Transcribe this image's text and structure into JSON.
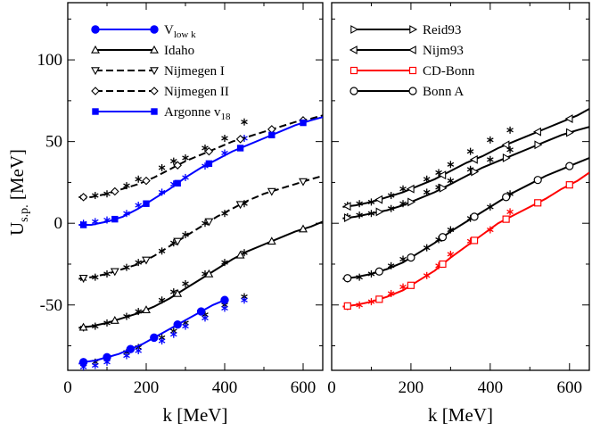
{
  "chart_data": [
    {
      "type": "line",
      "panel": "left",
      "xlabel": "k [MeV]",
      "ylabel": "U",
      "ylabel_sub": "s.p.",
      "ylabel_unit": " [MeV]",
      "xlim": [
        0,
        650
      ],
      "ylim": [
        -90,
        135
      ],
      "xticks": [
        0,
        200,
        400,
        600
      ],
      "xtick_labels": [
        "0",
        "200",
        "400",
        "600"
      ],
      "yticks": [
        -50,
        0,
        50,
        100
      ],
      "ytick_labels": [
        "-50",
        "0",
        "50",
        "100"
      ],
      "legend": [
        "V",
        "Idaho",
        "Nijmegen I",
        "Nijmegen II",
        "Argonne v"
      ],
      "legend_subs": [
        "low k",
        "",
        "",
        "",
        "18"
      ],
      "series": [
        {
          "name": "Vlow k",
          "color": "#0000ff",
          "marker": "filled-circle",
          "dash": "solid",
          "x": [
            28,
            40,
            70,
            100,
            130,
            160,
            190,
            220,
            250,
            280,
            310,
            340,
            370,
            400
          ],
          "y": [
            -86,
            -85,
            -84,
            -82,
            -80,
            -77,
            -74,
            -70,
            -66,
            -62,
            -58,
            -54,
            -50,
            -47
          ],
          "marker_x": [
            40,
            100,
            160,
            220,
            280,
            340,
            400
          ]
        },
        {
          "name": "Idaho",
          "color": "#000000",
          "marker": "open-triangle-up",
          "dash": "solid",
          "x": [
            28,
            60,
            100,
            140,
            180,
            220,
            260,
            300,
            340,
            380,
            420,
            460,
            500,
            540,
            580,
            620,
            650
          ],
          "y": [
            -64,
            -63,
            -61,
            -58,
            -55,
            -51,
            -46,
            -40,
            -34,
            -28,
            -22,
            -17,
            -13,
            -9,
            -5,
            -2,
            1
          ],
          "marker_x": [
            40,
            120,
            200,
            280,
            360,
            440,
            520,
            600
          ]
        },
        {
          "name": "Nijmegen I",
          "color": "#000000",
          "marker": "open-triangle-down",
          "dash": "dashed",
          "x": [
            28,
            60,
            100,
            140,
            180,
            220,
            260,
            300,
            340,
            380,
            420,
            460,
            500,
            540,
            580,
            620,
            650
          ],
          "y": [
            -34,
            -33,
            -31,
            -28,
            -25,
            -20,
            -14,
            -8,
            -2,
            4,
            9,
            14,
            18,
            21,
            24,
            27,
            29
          ],
          "marker_x": [
            40,
            120,
            200,
            280,
            360,
            440,
            520,
            600
          ]
        },
        {
          "name": "Nijmegen II",
          "color": "#000000",
          "marker": "open-diamond",
          "dash": "dashed",
          "x": [
            28,
            60,
            100,
            140,
            180,
            220,
            260,
            300,
            340,
            380,
            420,
            460,
            500,
            540,
            580,
            620,
            650
          ],
          "y": [
            16,
            16,
            18,
            21,
            24,
            28,
            33,
            38,
            42,
            46,
            50,
            53,
            56,
            59,
            62,
            64,
            66
          ],
          "marker_x": [
            40,
            120,
            200,
            280,
            360,
            440,
            520,
            600
          ]
        },
        {
          "name": "Argonne v18",
          "color": "#0000ff",
          "marker": "filled-square",
          "dash": "solid",
          "x": [
            28,
            60,
            100,
            140,
            180,
            220,
            260,
            300,
            340,
            380,
            420,
            460,
            500,
            540,
            580,
            620,
            650
          ],
          "y": [
            -1,
            -1,
            1,
            4,
            9,
            15,
            21,
            28,
            34,
            39,
            44,
            48,
            52,
            56,
            60,
            63,
            65
          ],
          "marker_x": [
            40,
            120,
            200,
            280,
            360,
            440,
            520,
            600
          ]
        }
      ],
      "star_series": [
        {
          "color": "#000000",
          "x": [
            40,
            70,
            100,
            150,
            180,
            240,
            270,
            300,
            350,
            400,
            450
          ],
          "y": [
            -86,
            -85,
            -83,
            -79,
            -76,
            -70,
            -66,
            -61,
            -56,
            -50,
            -45
          ]
        },
        {
          "color": "#0000ff",
          "x": [
            40,
            70,
            100,
            150,
            180,
            240,
            270,
            300,
            350,
            400,
            450
          ],
          "y": [
            -88,
            -87,
            -85,
            -81,
            -78,
            -72,
            -68,
            -63,
            -58,
            -52,
            -47
          ]
        },
        {
          "color": "#000000",
          "x": [
            40,
            70,
            100,
            150,
            180,
            240,
            270,
            300,
            350,
            400,
            450
          ],
          "y": [
            -64,
            -63,
            -61,
            -57,
            -54,
            -47,
            -42,
            -37,
            -31,
            -24,
            -18
          ]
        },
        {
          "color": "#000000",
          "x": [
            40,
            70,
            100,
            150,
            180,
            240,
            270,
            300,
            350,
            400,
            450
          ],
          "y": [
            -34,
            -33,
            -31,
            -27,
            -24,
            -17,
            -12,
            -7,
            0,
            6,
            12
          ]
        },
        {
          "color": "#000000",
          "x": [
            40,
            70,
            100,
            150,
            180,
            240,
            270,
            300,
            350,
            400,
            450
          ],
          "y": [
            16,
            17,
            18,
            23,
            27,
            34,
            38,
            40,
            46,
            52,
            62
          ]
        },
        {
          "color": "#0000ff",
          "x": [
            40,
            70,
            100,
            150,
            180,
            240,
            270,
            300,
            350,
            400,
            450
          ],
          "y": [
            0,
            1,
            2,
            6,
            11,
            19,
            24,
            28,
            35,
            43,
            52
          ]
        }
      ]
    },
    {
      "type": "line",
      "panel": "right",
      "xlabel": "k [MeV]",
      "xlim": [
        0,
        650
      ],
      "ylim": [
        -90,
        135
      ],
      "xticks": [
        0,
        200,
        400,
        600
      ],
      "xtick_labels": [
        "0",
        "200",
        "400",
        "600"
      ],
      "yticks": [
        -50,
        0,
        50,
        100
      ],
      "legend": [
        "Reid93",
        "Nijm93",
        "CD-Bonn",
        "Bonn A"
      ],
      "series": [
        {
          "name": "Reid93",
          "color": "#000000",
          "marker": "open-triangle-right",
          "dash": "solid",
          "x": [
            28,
            60,
            100,
            140,
            180,
            220,
            260,
            300,
            340,
            380,
            420,
            460,
            500,
            540,
            580,
            620,
            650
          ],
          "y": [
            3,
            4,
            6,
            8,
            11,
            15,
            19,
            24,
            29,
            34,
            38,
            42,
            46,
            50,
            54,
            57,
            59
          ],
          "marker_x": [
            40,
            120,
            200,
            280,
            360,
            440,
            520,
            600
          ]
        },
        {
          "name": "Nijm93",
          "color": "#000000",
          "marker": "open-triangle-left",
          "dash": "solid",
          "x": [
            28,
            60,
            100,
            140,
            180,
            220,
            260,
            300,
            340,
            380,
            420,
            460,
            500,
            540,
            580,
            620,
            650
          ],
          "y": [
            10,
            11,
            13,
            16,
            19,
            23,
            27,
            32,
            37,
            41,
            46,
            50,
            54,
            58,
            62,
            66,
            70
          ],
          "marker_x": [
            40,
            120,
            200,
            280,
            360,
            440,
            520,
            600
          ]
        },
        {
          "name": "CD-Bonn",
          "color": "#ff0000",
          "marker": "open-square",
          "dash": "solid",
          "x": [
            28,
            60,
            100,
            140,
            180,
            220,
            260,
            300,
            340,
            380,
            420,
            460,
            500,
            540,
            580,
            620,
            650
          ],
          "y": [
            -51,
            -50,
            -48,
            -45,
            -41,
            -35,
            -29,
            -21,
            -14,
            -7,
            0,
            5,
            10,
            15,
            21,
            26,
            31
          ],
          "marker_x": [
            40,
            120,
            200,
            280,
            360,
            440,
            520,
            600
          ]
        },
        {
          "name": "Bonn A",
          "color": "#000000",
          "marker": "open-circle",
          "dash": "solid",
          "x": [
            28,
            60,
            100,
            140,
            180,
            220,
            260,
            300,
            340,
            380,
            420,
            460,
            500,
            540,
            580,
            620,
            650
          ],
          "y": [
            -34,
            -33,
            -31,
            -28,
            -24,
            -18,
            -12,
            -5,
            1,
            7,
            13,
            19,
            24,
            29,
            33,
            37,
            40
          ],
          "marker_x": [
            40,
            120,
            200,
            280,
            360,
            440,
            520,
            600
          ]
        }
      ],
      "star_series": [
        {
          "color": "#000000",
          "x": [
            40,
            70,
            100,
            150,
            180,
            240,
            270,
            300,
            350,
            400,
            450
          ],
          "y": [
            4,
            5,
            6,
            9,
            12,
            19,
            22,
            26,
            33,
            39,
            45
          ]
        },
        {
          "color": "#000000",
          "x": [
            40,
            70,
            100,
            150,
            180,
            240,
            270,
            300,
            350,
            400,
            450
          ],
          "y": [
            11,
            12,
            13,
            17,
            21,
            27,
            31,
            36,
            44,
            51,
            57
          ]
        },
        {
          "color": "#000000",
          "x": [
            40,
            70,
            100,
            150,
            180,
            240,
            270,
            300,
            350,
            400,
            450
          ],
          "y": [
            -34,
            -33,
            -31,
            -26,
            -22,
            -15,
            -10,
            -4,
            3,
            10,
            18
          ]
        },
        {
          "color": "#ff0000",
          "x": [
            40,
            70,
            100,
            150,
            180,
            240,
            270,
            300,
            350,
            400,
            450
          ],
          "y": [
            -51,
            -50,
            -48,
            -43,
            -39,
            -32,
            -26,
            -19,
            -11,
            -4,
            7
          ]
        }
      ]
    }
  ]
}
